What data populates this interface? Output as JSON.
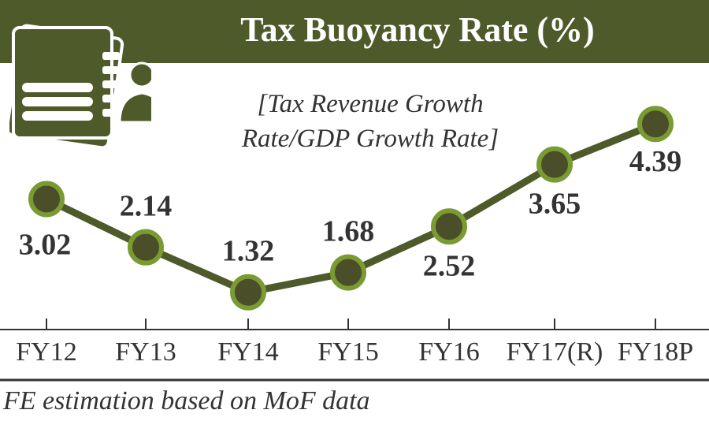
{
  "chart_data": {
    "type": "line",
    "title": "Tax Buoyancy Rate (%)",
    "subtitle": "[Tax Revenue Growth Rate/GDP Growth Rate]",
    "subtitle_lines": [
      "[Tax Revenue Growth",
      "Rate/GDP Growth Rate]"
    ],
    "categories": [
      "FY12",
      "FY13",
      "FY14",
      "FY15",
      "FY16",
      "FY17(R)",
      "FY18P"
    ],
    "values": [
      3.02,
      2.14,
      1.32,
      1.68,
      2.52,
      3.65,
      4.39
    ],
    "labels": [
      "3.02",
      "2.14",
      "1.32",
      "1.68",
      "2.52",
      "3.65",
      "4.39"
    ],
    "xlabel": "",
    "ylabel": "",
    "ylim": [
      0.64,
      5.5
    ],
    "grid": false,
    "footer": "FE estimation based on MoF data",
    "colors": {
      "band": "#4f5a2b",
      "line": "#4f5a2b",
      "marker_fill": "#4a4f2a",
      "marker_ring": "#7a9a32",
      "text": "#333333"
    }
  }
}
